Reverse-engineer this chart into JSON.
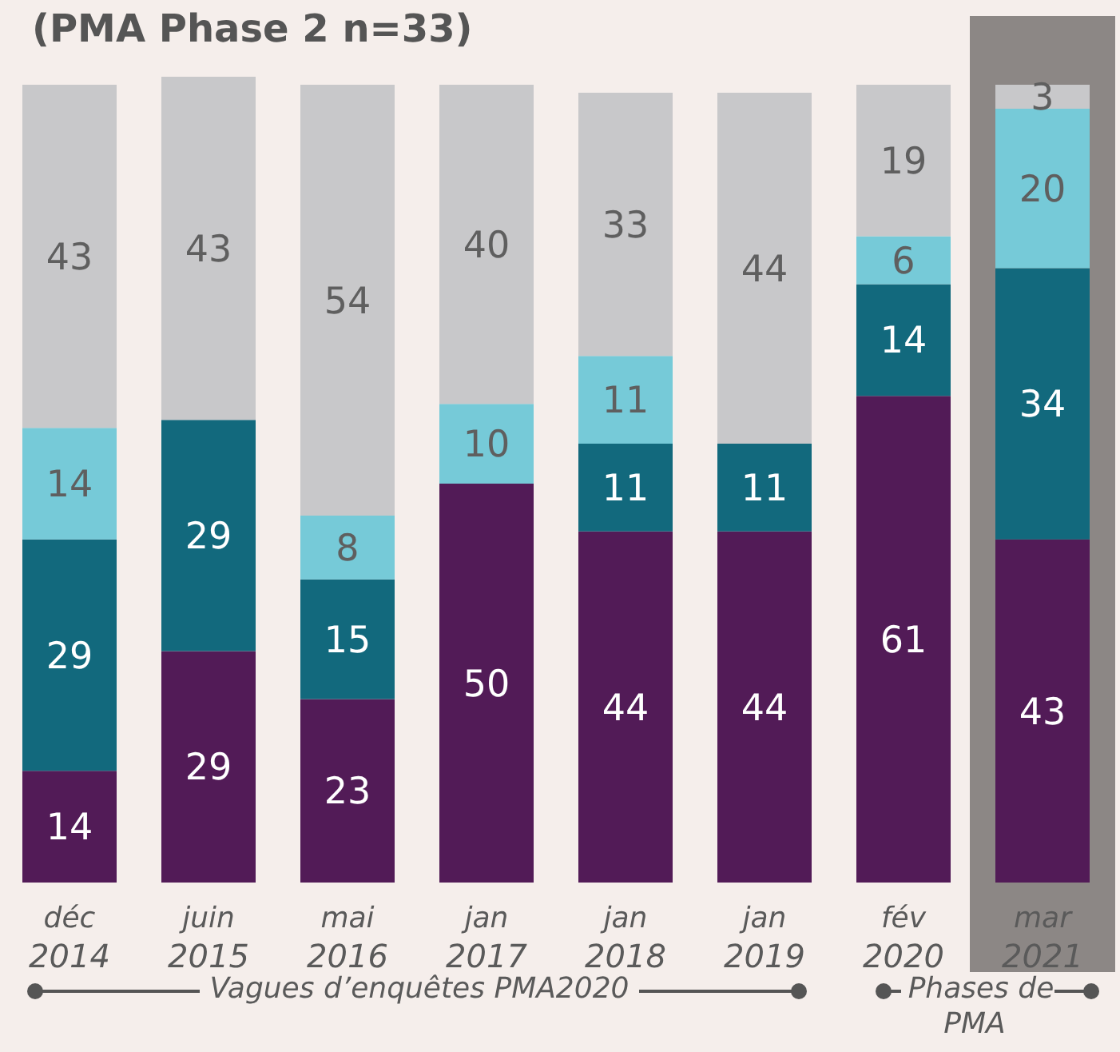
{
  "chart_data": {
    "type": "bar",
    "title": "(PMA Phase 2 n=33)",
    "stacked": true,
    "data_labels": true,
    "categories": [
      "déc 2014",
      "juin 2015",
      "mai 2016",
      "jan 2017",
      "jan 2018",
      "jan 2019",
      "fév 2020",
      "mar 2021"
    ],
    "series": [
      {
        "color": "#521b57",
        "values": [
          14,
          29,
          23,
          50,
          44,
          44,
          61,
          43
        ]
      },
      {
        "color": "#12697d",
        "values": [
          29,
          29,
          15,
          null,
          11,
          11,
          14,
          34
        ]
      },
      {
        "color": "#76cad8",
        "values": [
          14,
          null,
          8,
          10,
          11,
          null,
          6,
          20
        ]
      },
      {
        "color": "#c8c8ca",
        "values": [
          43,
          43,
          54,
          40,
          33,
          44,
          19,
          3
        ]
      }
    ],
    "bands": [
      {
        "axis": "x",
        "from": "mar 2021",
        "to": "mar 2021",
        "color": "#8c8785"
      }
    ],
    "annotations": [
      "Vagues d’enquêtes PMA2020",
      "Phases de PMA"
    ]
  }
}
